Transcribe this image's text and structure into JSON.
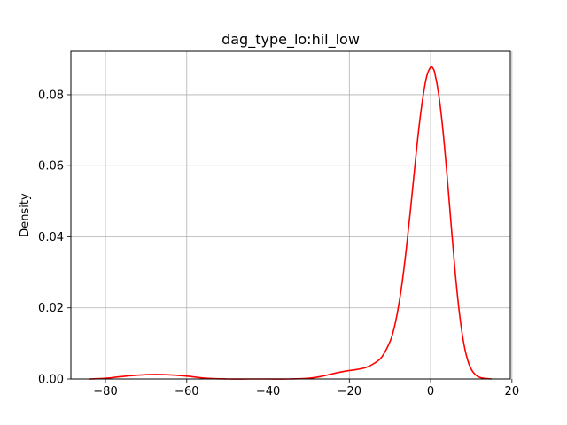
{
  "chart_data": {
    "type": "line",
    "title": "dag_type_lo:hil_low",
    "xlabel": "",
    "ylabel": "Density",
    "xlim": [
      -88.5,
      19.6
    ],
    "ylim": [
      0.0,
      0.0922
    ],
    "grid": true,
    "legend": "none",
    "x_ticks": [
      -80,
      -60,
      -40,
      -20,
      0,
      20
    ],
    "x_tick_labels": [
      "−80",
      "−60",
      "−40",
      "−20",
      "0",
      "20"
    ],
    "y_ticks": [
      0.0,
      0.02,
      0.04,
      0.06,
      0.08
    ],
    "y_tick_labels": [
      "0.00",
      "0.02",
      "0.04",
      "0.06",
      "0.08"
    ],
    "series": [
      {
        "color": "#ff0000",
        "x": [
          -84,
          -80,
          -75,
          -70,
          -65,
          -60,
          -55,
          -50,
          -45,
          -40,
          -35,
          -30,
          -27,
          -24,
          -21,
          -18,
          -16,
          -14,
          -12,
          -10,
          -9,
          -8,
          -7,
          -6,
          -5,
          -4,
          -3,
          -2,
          -1,
          0,
          0.5,
          1,
          2,
          3,
          4,
          5,
          6,
          7,
          8,
          9,
          10,
          11,
          12,
          13,
          14,
          15
        ],
        "y": [
          0.0,
          0.0002,
          0.0008,
          0.0012,
          0.0012,
          0.0008,
          0.0002,
          0.0,
          0.0,
          0.0,
          0.0,
          0.0002,
          0.0007,
          0.0015,
          0.0022,
          0.0027,
          0.0032,
          0.0043,
          0.0062,
          0.0105,
          0.0142,
          0.0198,
          0.0272,
          0.0365,
          0.0472,
          0.0585,
          0.0695,
          0.0785,
          0.085,
          0.0878,
          0.0875,
          0.0862,
          0.08,
          0.0703,
          0.0578,
          0.044,
          0.0305,
          0.0193,
          0.011,
          0.0057,
          0.0027,
          0.0012,
          0.0005,
          0.0002,
          0.0001,
          0.0
        ]
      }
    ]
  }
}
